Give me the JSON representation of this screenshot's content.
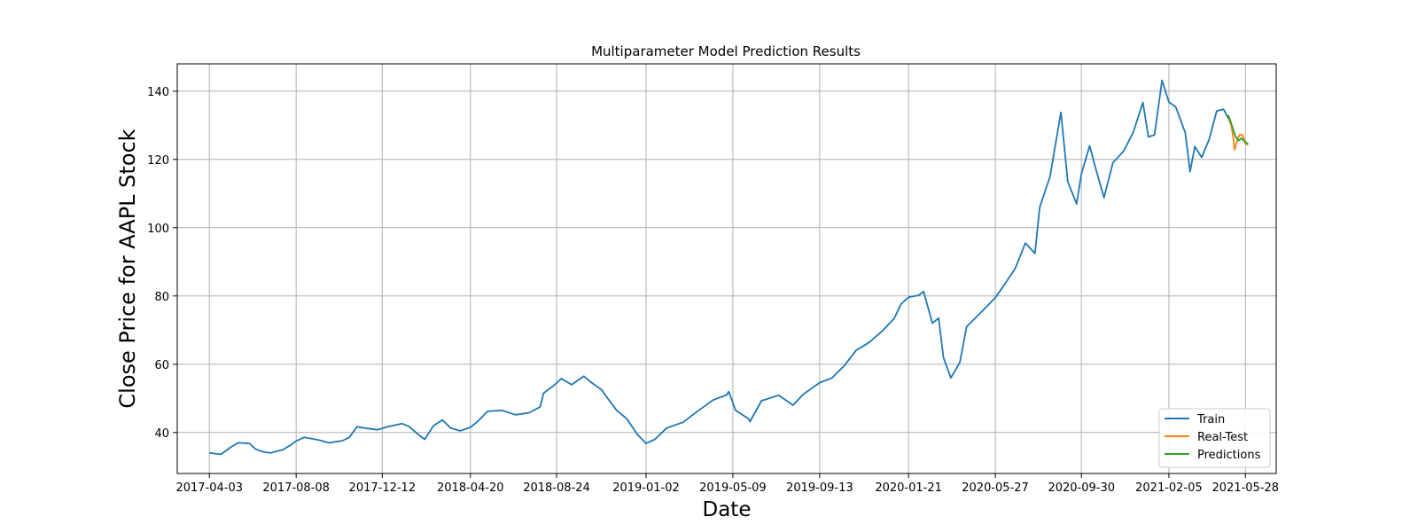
{
  "chart_data": {
    "type": "line",
    "title": "Multiparameter Model Prediction Results",
    "xlabel": "Date",
    "ylabel": "Close Price for AAPL Stock",
    "x_tick_labels": [
      "2017-04-03",
      "2017-08-08",
      "2017-12-12",
      "2018-04-20",
      "2018-08-24",
      "2019-01-02",
      "2019-05-09",
      "2019-09-13",
      "2020-01-21",
      "2020-05-27",
      "2020-09-30",
      "2021-02-05",
      "2021-05-28"
    ],
    "x_range": [
      "2017-02-15",
      "2021-07-12"
    ],
    "y_ticks": [
      40,
      60,
      80,
      100,
      120,
      140
    ],
    "ylim": [
      28,
      148
    ],
    "grid": true,
    "legend_position": "lower-right",
    "series": [
      {
        "name": "Train",
        "color": "#1f77b4",
        "points": [
          [
            "2017-04-03",
            34.0
          ],
          [
            "2017-04-20",
            33.6
          ],
          [
            "2017-05-05",
            35.8
          ],
          [
            "2017-05-15",
            37.0
          ],
          [
            "2017-06-01",
            36.8
          ],
          [
            "2017-06-09",
            35.2
          ],
          [
            "2017-06-20",
            34.4
          ],
          [
            "2017-07-01",
            34.0
          ],
          [
            "2017-07-20",
            35.0
          ],
          [
            "2017-08-01",
            36.5
          ],
          [
            "2017-08-08",
            37.5
          ],
          [
            "2017-08-20",
            38.6
          ],
          [
            "2017-09-10",
            37.8
          ],
          [
            "2017-09-25",
            37.0
          ],
          [
            "2017-10-15",
            37.6
          ],
          [
            "2017-10-25",
            38.6
          ],
          [
            "2017-11-05",
            41.7
          ],
          [
            "2017-11-20",
            41.2
          ],
          [
            "2017-12-05",
            40.8
          ],
          [
            "2017-12-20",
            41.7
          ],
          [
            "2018-01-10",
            42.6
          ],
          [
            "2018-01-20",
            41.8
          ],
          [
            "2018-02-05",
            39.0
          ],
          [
            "2018-02-12",
            38.0
          ],
          [
            "2018-02-25",
            42.0
          ],
          [
            "2018-03-10",
            43.7
          ],
          [
            "2018-03-22",
            41.3
          ],
          [
            "2018-04-05",
            40.5
          ],
          [
            "2018-04-20",
            41.5
          ],
          [
            "2018-05-02",
            43.5
          ],
          [
            "2018-05-15",
            46.2
          ],
          [
            "2018-06-05",
            46.5
          ],
          [
            "2018-06-25",
            45.2
          ],
          [
            "2018-07-15",
            45.8
          ],
          [
            "2018-07-31",
            47.5
          ],
          [
            "2018-08-05",
            51.5
          ],
          [
            "2018-08-20",
            53.8
          ],
          [
            "2018-08-31",
            55.8
          ],
          [
            "2018-09-15",
            54.0
          ],
          [
            "2018-10-03",
            56.5
          ],
          [
            "2018-10-15",
            54.5
          ],
          [
            "2018-10-29",
            52.5
          ],
          [
            "2018-11-05",
            50.5
          ],
          [
            "2018-11-20",
            46.5
          ],
          [
            "2018-12-05",
            44.0
          ],
          [
            "2018-12-20",
            39.5
          ],
          [
            "2019-01-02",
            36.8
          ],
          [
            "2019-01-15",
            38.0
          ],
          [
            "2019-02-01",
            41.3
          ],
          [
            "2019-02-25",
            43.0
          ],
          [
            "2019-03-20",
            46.5
          ],
          [
            "2019-04-10",
            49.5
          ],
          [
            "2019-04-30",
            51.0
          ],
          [
            "2019-05-03",
            52.0
          ],
          [
            "2019-05-13",
            46.5
          ],
          [
            "2019-06-01",
            44.0
          ],
          [
            "2019-06-03",
            43.2
          ],
          [
            "2019-06-20",
            49.3
          ],
          [
            "2019-07-15",
            50.9
          ],
          [
            "2019-08-05",
            48.0
          ],
          [
            "2019-08-20",
            51.2
          ],
          [
            "2019-09-13",
            54.6
          ],
          [
            "2019-10-01",
            56.0
          ],
          [
            "2019-10-20",
            59.8
          ],
          [
            "2019-11-05",
            64.0
          ],
          [
            "2019-11-25",
            66.5
          ],
          [
            "2019-12-15",
            70.0
          ],
          [
            "2019-12-31",
            73.4
          ],
          [
            "2020-01-10",
            77.6
          ],
          [
            "2020-01-21",
            79.6
          ],
          [
            "2020-02-05",
            80.2
          ],
          [
            "2020-02-12",
            81.3
          ],
          [
            "2020-02-25",
            72.0
          ],
          [
            "2020-03-05",
            73.5
          ],
          [
            "2020-03-12",
            62.0
          ],
          [
            "2020-03-23",
            56.0
          ],
          [
            "2020-04-05",
            60.5
          ],
          [
            "2020-04-15",
            71.0
          ],
          [
            "2020-05-05",
            75.0
          ],
          [
            "2020-05-27",
            79.5
          ],
          [
            "2020-06-10",
            83.5
          ],
          [
            "2020-06-25",
            88.0
          ],
          [
            "2020-07-10",
            95.5
          ],
          [
            "2020-07-24",
            92.5
          ],
          [
            "2020-07-31",
            106.0
          ],
          [
            "2020-08-15",
            115.0
          ],
          [
            "2020-08-31",
            133.8
          ],
          [
            "2020-09-10",
            113.5
          ],
          [
            "2020-09-23",
            107.0
          ],
          [
            "2020-09-30",
            115.8
          ],
          [
            "2020-10-12",
            124.0
          ],
          [
            "2020-10-20",
            118.0
          ],
          [
            "2020-11-02",
            108.8
          ],
          [
            "2020-11-15",
            119.0
          ],
          [
            "2020-12-01",
            122.5
          ],
          [
            "2020-12-15",
            128.0
          ],
          [
            "2020-12-29",
            136.7
          ],
          [
            "2021-01-06",
            126.6
          ],
          [
            "2021-01-15",
            127.2
          ],
          [
            "2021-01-26",
            143.2
          ],
          [
            "2021-02-05",
            136.8
          ],
          [
            "2021-02-15",
            135.4
          ],
          [
            "2021-03-01",
            127.8
          ],
          [
            "2021-03-08",
            116.4
          ],
          [
            "2021-03-15",
            123.8
          ],
          [
            "2021-03-25",
            120.6
          ],
          [
            "2021-04-05",
            125.9
          ],
          [
            "2021-04-16",
            134.2
          ],
          [
            "2021-04-26",
            134.7
          ],
          [
            "2021-05-03",
            132.0
          ]
        ]
      },
      {
        "name": "Real-Test",
        "color": "#ff7f0e",
        "points": [
          [
            "2021-05-03",
            132.0
          ],
          [
            "2021-05-07",
            130.2
          ],
          [
            "2021-05-10",
            126.8
          ],
          [
            "2021-05-12",
            122.8
          ],
          [
            "2021-05-17",
            126.3
          ],
          [
            "2021-05-20",
            127.3
          ],
          [
            "2021-05-24",
            127.1
          ],
          [
            "2021-05-28",
            124.6
          ],
          [
            "2021-06-01",
            124.3
          ]
        ]
      },
      {
        "name": "Predictions",
        "color": "#2ca02c",
        "points": [
          [
            "2021-05-03",
            133.0
          ],
          [
            "2021-05-06",
            131.3
          ],
          [
            "2021-05-10",
            128.8
          ],
          [
            "2021-05-14",
            126.5
          ],
          [
            "2021-05-18",
            125.5
          ],
          [
            "2021-05-22",
            126.2
          ],
          [
            "2021-05-26",
            125.4
          ],
          [
            "2021-06-01",
            124.5
          ]
        ]
      }
    ]
  }
}
